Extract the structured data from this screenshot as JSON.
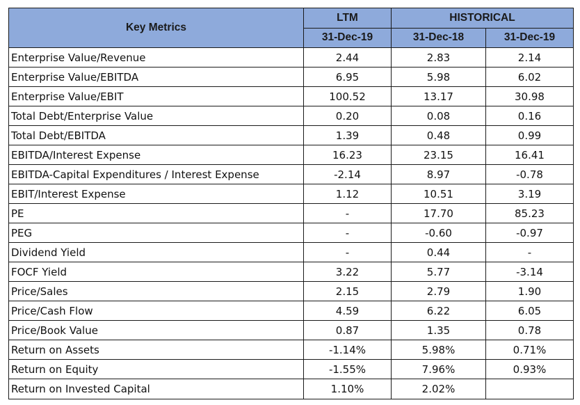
{
  "header": {
    "key_metrics": "Key Metrics",
    "ltm": "LTM",
    "historical": "HISTORICAL",
    "col1": "31-Dec-19",
    "col2": "31-Dec-18",
    "col3": "31-Dec-19"
  },
  "rows": [
    {
      "label": "Enterprise Value/Revenue",
      "v": [
        "2.44",
        "2.83",
        "2.14"
      ]
    },
    {
      "label": "Enterprise Value/EBITDA",
      "v": [
        "6.95",
        "5.98",
        "6.02"
      ]
    },
    {
      "label": "Enterprise Value/EBIT",
      "v": [
        "100.52",
        "13.17",
        "30.98"
      ]
    },
    {
      "label": "Total Debt/Enterprise Value",
      "v": [
        "0.20",
        "0.08",
        "0.16"
      ]
    },
    {
      "label": "Total Debt/EBITDA",
      "v": [
        "1.39",
        "0.48",
        "0.99"
      ]
    },
    {
      "label": "EBITDA/Interest Expense",
      "v": [
        "16.23",
        "23.15",
        "16.41"
      ]
    },
    {
      "label": "EBITDA-Capital Expenditures / Interest Expense",
      "v": [
        "-2.14",
        "8.97",
        "-0.78"
      ]
    },
    {
      "label": "EBIT/Interest Expense",
      "v": [
        "1.12",
        "10.51",
        "3.19"
      ]
    },
    {
      "label": "PE",
      "v": [
        "-",
        "17.70",
        "85.23"
      ]
    },
    {
      "label": "PEG",
      "v": [
        "-",
        "-0.60",
        "-0.97"
      ]
    },
    {
      "label": "Dividend Yield",
      "v": [
        "-",
        "0.44",
        "-"
      ]
    },
    {
      "label": "FOCF Yield",
      "v": [
        "3.22",
        "5.77",
        "-3.14"
      ]
    },
    {
      "label": "Price/Sales",
      "v": [
        "2.15",
        "2.79",
        "1.90"
      ]
    },
    {
      "label": "Price/Cash Flow",
      "v": [
        "4.59",
        "6.22",
        "6.05"
      ]
    },
    {
      "label": "Price/Book Value",
      "v": [
        "0.87",
        "1.35",
        "0.78"
      ]
    },
    {
      "label": "Return on Assets",
      "v": [
        "-1.14%",
        "5.98%",
        "0.71%"
      ]
    },
    {
      "label": "Return on Equity",
      "v": [
        "-1.55%",
        "7.96%",
        "0.93%"
      ]
    },
    {
      "label": "Return on Invested Capital",
      "v": [
        "1.10%",
        "2.02%",
        ""
      ]
    }
  ],
  "colors": {
    "header_bg": "#8eaadb",
    "border": "#1a1a1a",
    "text": "#111111"
  }
}
